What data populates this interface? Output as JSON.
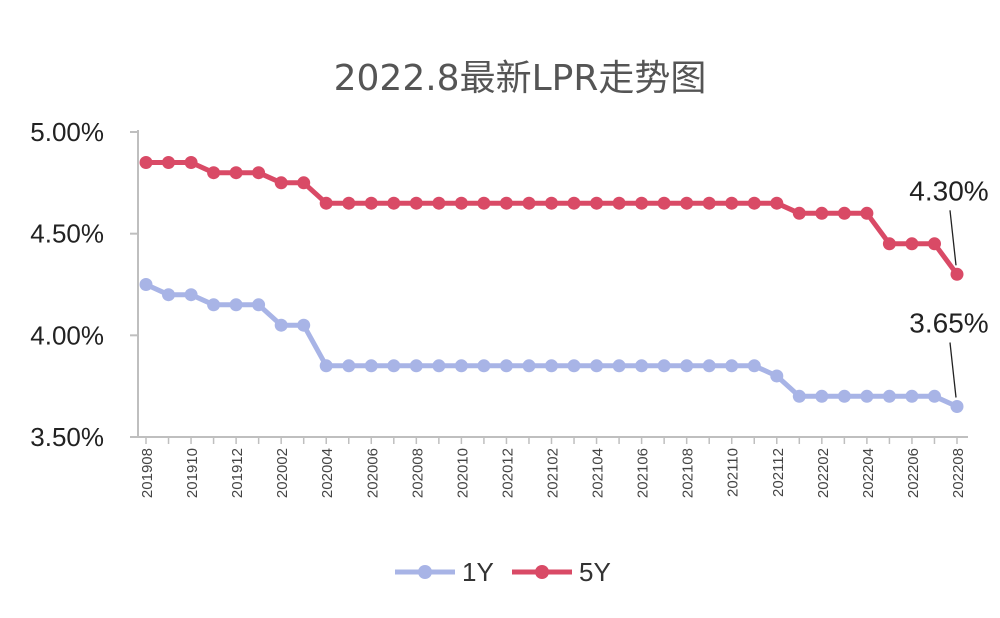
{
  "chart_data": {
    "type": "line",
    "title": "2022.8最新LPR走势图",
    "xlabel": "",
    "ylabel": "",
    "ylim": [
      3.5,
      5.0
    ],
    "yticks": [
      "3.50%",
      "4.00%",
      "4.50%",
      "5.00%"
    ],
    "ytick_values": [
      3.5,
      4.0,
      4.5,
      5.0
    ],
    "x": [
      "201908",
      "201909",
      "201910",
      "201911",
      "201912",
      "202001",
      "202002",
      "202003",
      "202004",
      "202005",
      "202006",
      "202007",
      "202008",
      "202009",
      "202010",
      "202011",
      "202012",
      "202101",
      "202102",
      "202103",
      "202104",
      "202105",
      "202106",
      "202107",
      "202108",
      "202109",
      "202110",
      "202111",
      "202112",
      "202201",
      "202202",
      "202203",
      "202204",
      "202205",
      "202206",
      "202207",
      "202208"
    ],
    "x_tick_labels": [
      "201908",
      "201910",
      "201912",
      "202002",
      "202004",
      "202006",
      "202008",
      "202010",
      "202012",
      "202102",
      "202104",
      "202106",
      "202108",
      "202110",
      "202112",
      "202202",
      "202204",
      "202206",
      "202208"
    ],
    "series": [
      {
        "name": "1Y",
        "color": "#a8b4e6",
        "values": [
          4.25,
          4.2,
          4.2,
          4.15,
          4.15,
          4.15,
          4.05,
          4.05,
          3.85,
          3.85,
          3.85,
          3.85,
          3.85,
          3.85,
          3.85,
          3.85,
          3.85,
          3.85,
          3.85,
          3.85,
          3.85,
          3.85,
          3.85,
          3.85,
          3.85,
          3.85,
          3.85,
          3.85,
          3.8,
          3.7,
          3.7,
          3.7,
          3.7,
          3.7,
          3.7,
          3.7,
          3.65
        ]
      },
      {
        "name": "5Y",
        "color": "#d94a66",
        "values": [
          4.85,
          4.85,
          4.85,
          4.8,
          4.8,
          4.8,
          4.75,
          4.75,
          4.65,
          4.65,
          4.65,
          4.65,
          4.65,
          4.65,
          4.65,
          4.65,
          4.65,
          4.65,
          4.65,
          4.65,
          4.65,
          4.65,
          4.65,
          4.65,
          4.65,
          4.65,
          4.65,
          4.65,
          4.65,
          4.6,
          4.6,
          4.6,
          4.6,
          4.45,
          4.45,
          4.45,
          4.3
        ]
      }
    ],
    "annotations": [
      {
        "text": "4.30%",
        "series": "5Y",
        "index": 36
      },
      {
        "text": "3.65%",
        "series": "1Y",
        "index": 36
      }
    ],
    "legend": "bottom",
    "grid": false
  }
}
